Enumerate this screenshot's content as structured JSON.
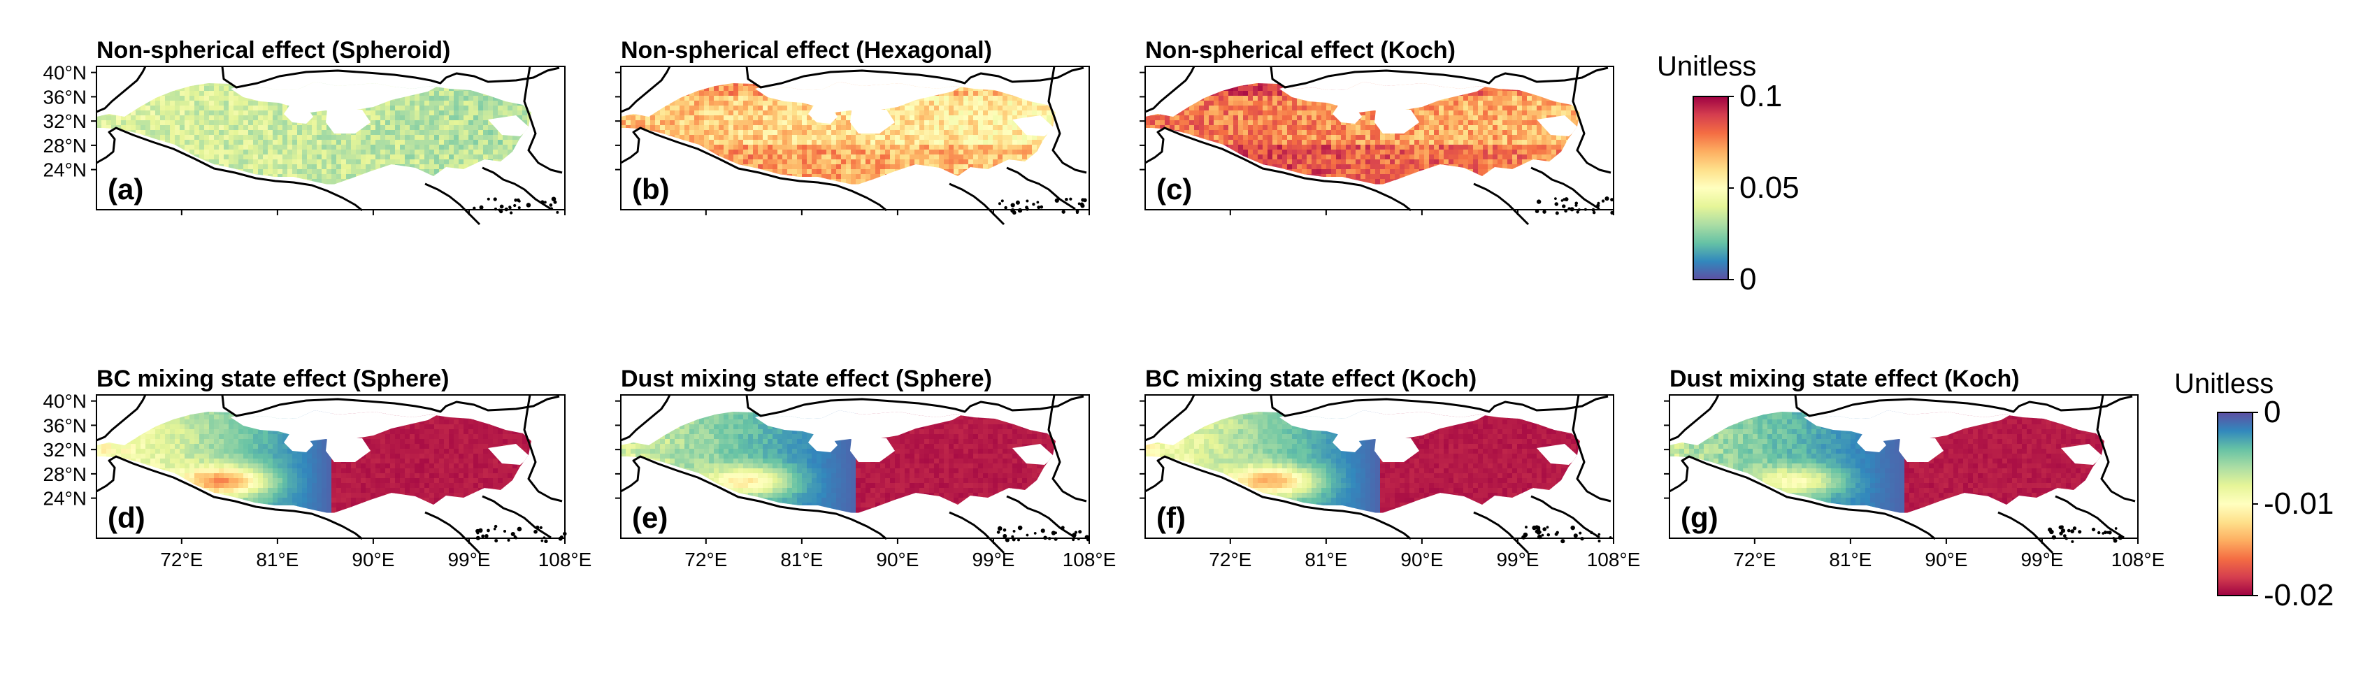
{
  "panels": [
    {
      "id": "a",
      "title": "Non-spherical effect (Spheroid)",
      "label": "(a)",
      "row": 0,
      "col": 0,
      "effect": "ns",
      "intensity": 0.45
    },
    {
      "id": "b",
      "title": "Non-spherical effect (Hexagonal)",
      "label": "(b)",
      "row": 0,
      "col": 1,
      "effect": "ns",
      "intensity": 0.62
    },
    {
      "id": "c",
      "title": "Non-spherical effect (Koch)",
      "label": "(c)",
      "row": 0,
      "col": 2,
      "effect": "ns",
      "intensity": 0.86
    },
    {
      "id": "d",
      "title": "BC mixing state effect (Sphere)",
      "label": "(d)",
      "row": 1,
      "col": 0,
      "effect": "mix",
      "intensity": 1.0
    },
    {
      "id": "e",
      "title": "Dust mixing state effect (Sphere)",
      "label": "(e)",
      "row": 1,
      "col": 1,
      "effect": "mix",
      "intensity": 0.72
    },
    {
      "id": "f",
      "title": "BC mixing state effect (Koch)",
      "label": "(f)",
      "row": 1,
      "col": 2,
      "effect": "mix",
      "intensity": 0.92
    },
    {
      "id": "g",
      "title": "Dust mixing state effect (Koch)",
      "label": "(g)",
      "row": 1,
      "col": 3,
      "effect": "mix",
      "intensity": 0.62
    }
  ],
  "axes": {
    "lat_ticks": [
      "40°N",
      "36°N",
      "32°N",
      "28°N",
      "24°N"
    ],
    "lat_values": [
      40,
      36,
      32,
      28,
      24
    ],
    "lat_range": [
      22,
      41
    ],
    "lon_ticks": [
      "72°E",
      "81°E",
      "90°E",
      "99°E",
      "108°E"
    ],
    "lon_values": [
      72,
      81,
      90,
      99,
      108
    ],
    "lon_range": [
      64,
      108
    ]
  },
  "colorbars": [
    {
      "id": "top",
      "unit": "Unitless",
      "ticks": [
        "0.1",
        "0.05",
        "0"
      ],
      "tick_values": [
        0.1,
        0.05,
        0
      ],
      "range": [
        0,
        0.1
      ],
      "colormap": "Spectral_r"
    },
    {
      "id": "bottom",
      "unit": "Unitless",
      "ticks": [
        "0",
        "-0.01",
        "-0.02"
      ],
      "tick_values": [
        0,
        -0.01,
        -0.02
      ],
      "range": [
        -0.02,
        0
      ],
      "colormap": "Spectral"
    }
  ],
  "colors": {
    "spectral": [
      "#5E4FA2",
      "#3288BD",
      "#66C2A5",
      "#ABDDA4",
      "#E6F598",
      "#FFFFBF",
      "#FEE08B",
      "#FDAE61",
      "#F46D43",
      "#D53E4F",
      "#9E0142"
    ]
  }
}
